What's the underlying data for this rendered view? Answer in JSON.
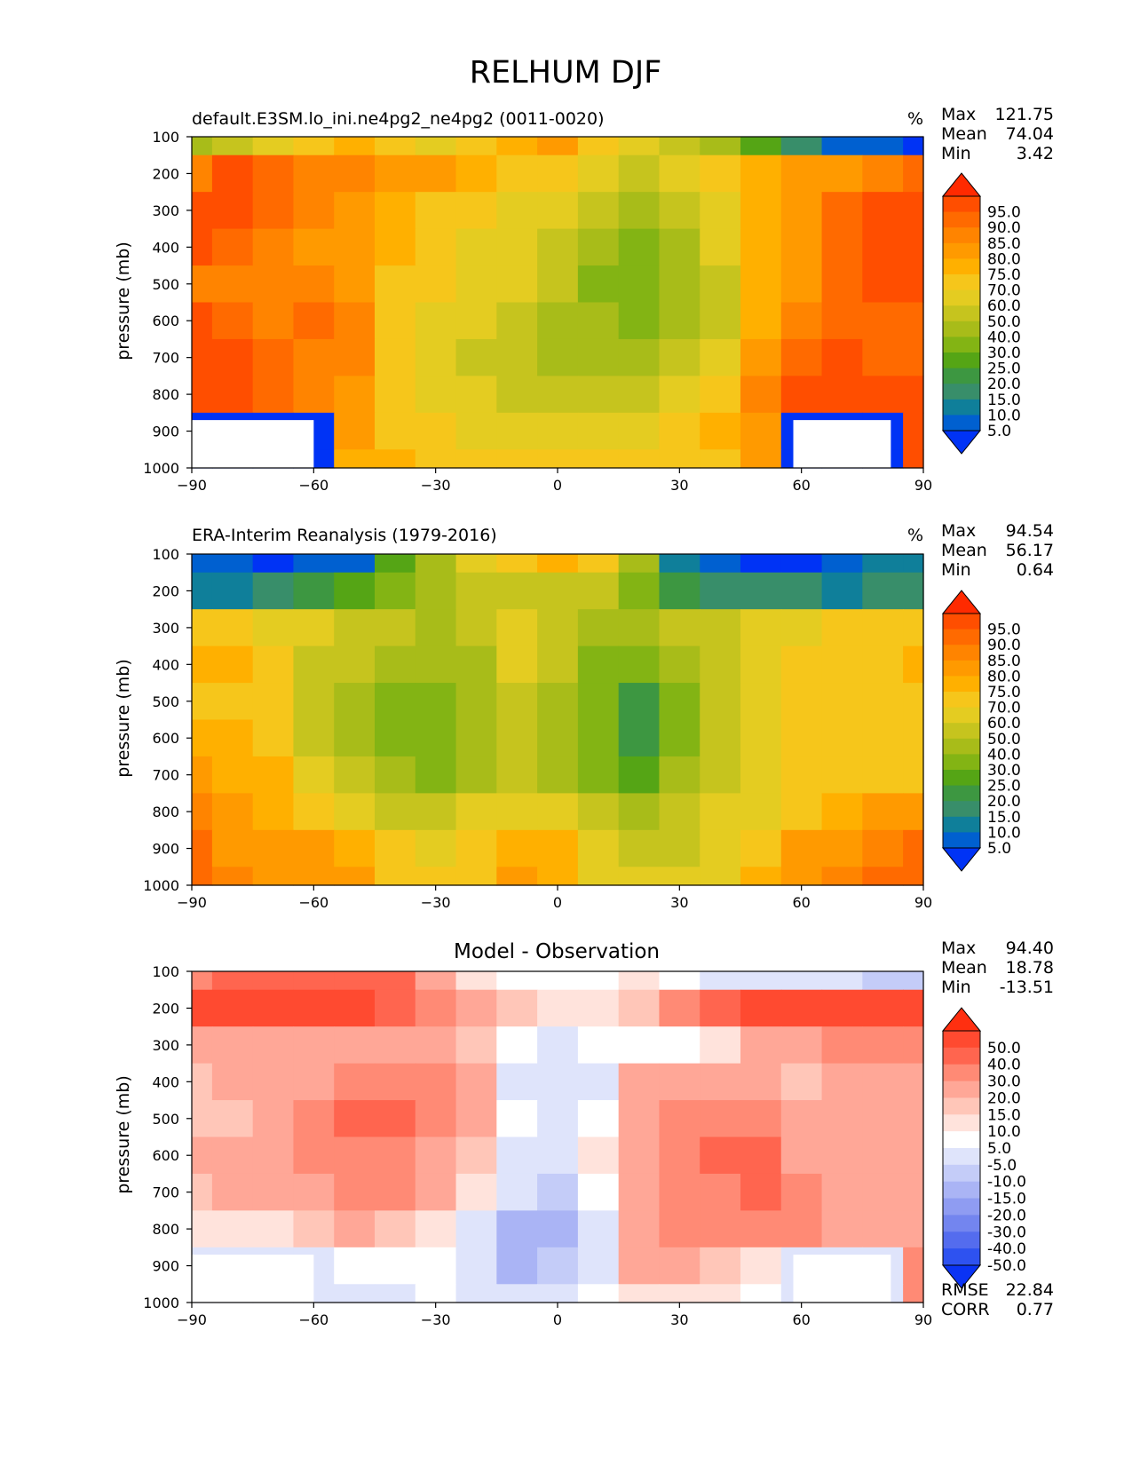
{
  "figure": {
    "title": "RELHUM DJF"
  },
  "panels": [
    {
      "title": "default.E3SM.lo_ini.ne4pg2_ne4pg2 (0011-0020)",
      "units": "%",
      "stats": [
        {
          "label": "Max",
          "value": "121.75"
        },
        {
          "label": "Mean",
          "value": "74.04"
        },
        {
          "label": "Min",
          "value": "3.42"
        }
      ],
      "ylabel": "pressure (mb)",
      "colorbar": {
        "levels": [
          "95.0",
          "90.0",
          "85.0",
          "80.0",
          "75.0",
          "70.0",
          "60.0",
          "50.0",
          "40.0",
          "30.0",
          "25.0",
          "20.0",
          "15.0",
          "10.0",
          "5.0"
        ],
        "colors": [
          "#ff2a00",
          "#ff4e00",
          "#ff6a00",
          "#ff8400",
          "#ff9a00",
          "#ffb000",
          "#f6c61b",
          "#e4cc21",
          "#c6c41e",
          "#a8bc19",
          "#83b414",
          "#55a515",
          "#3d9741",
          "#388e6a",
          "#0f7f9a",
          "#0060d0",
          "#0033f5"
        ]
      },
      "bottom_stats": []
    },
    {
      "title": "ERA-Interim Reanalysis (1979-2016)",
      "units": "%",
      "stats": [
        {
          "label": "Max",
          "value": "94.54"
        },
        {
          "label": "Mean",
          "value": "56.17"
        },
        {
          "label": "Min",
          "value": "0.64"
        }
      ],
      "ylabel": "pressure (mb)",
      "colorbar": {
        "levels": [
          "95.0",
          "90.0",
          "85.0",
          "80.0",
          "75.0",
          "70.0",
          "60.0",
          "50.0",
          "40.0",
          "30.0",
          "25.0",
          "20.0",
          "15.0",
          "10.0",
          "5.0"
        ],
        "colors": [
          "#ff2a00",
          "#ff4e00",
          "#ff6a00",
          "#ff8400",
          "#ff9a00",
          "#ffb000",
          "#f6c61b",
          "#e4cc21",
          "#c6c41e",
          "#a8bc19",
          "#83b414",
          "#55a515",
          "#3d9741",
          "#388e6a",
          "#0f7f9a",
          "#0060d0",
          "#0033f5"
        ]
      },
      "bottom_stats": []
    },
    {
      "title": "Model - Observation",
      "units": "",
      "stats": [
        {
          "label": "Max",
          "value": "94.40"
        },
        {
          "label": "Mean",
          "value": "18.78"
        },
        {
          "label": "Min",
          "value": "-13.51"
        }
      ],
      "ylabel": "pressure (mb)",
      "colorbar": {
        "levels": [
          "50.0",
          "40.0",
          "30.0",
          "20.0",
          "15.0",
          "10.0",
          "5.0",
          "-5.0",
          "-10.0",
          "-15.0",
          "-20.0",
          "-30.0",
          "-40.0",
          "-50.0"
        ],
        "colors": [
          "#ff2f10",
          "#ff4a30",
          "#ff654f",
          "#ff8a75",
          "#ffa797",
          "#ffc6b8",
          "#ffe3dc",
          "#ffffff",
          "#dfe4fb",
          "#c4ccf8",
          "#aab4f5",
          "#8f9cf2",
          "#7385ef",
          "#546cee",
          "#2e52f0",
          "#0a33f4"
        ]
      },
      "bottom_stats": [
        {
          "label": "RMSE",
          "value": "22.84"
        },
        {
          "label": "CORR",
          "value": "0.77"
        }
      ]
    }
  ],
  "chart_data": [
    {
      "type": "heatmap",
      "title": "default.E3SM.lo_ini.ne4pg2_ne4pg2 (0011-0020)",
      "ylabel": "pressure (mb)",
      "x": [
        -90,
        -80,
        -70,
        -60,
        -50,
        -40,
        -30,
        -20,
        -10,
        0,
        10,
        20,
        30,
        40,
        50,
        60,
        70,
        80,
        90
      ],
      "y": [
        100,
        200,
        300,
        400,
        500,
        600,
        700,
        800,
        900,
        1000
      ],
      "xticks": [
        "−90",
        "−60",
        "−30",
        "0",
        "30",
        "60",
        "90"
      ],
      "xtick_values": [
        -90,
        -60,
        -30,
        0,
        30,
        60,
        90
      ],
      "yticks": [
        "100",
        "200",
        "300",
        "400",
        "500",
        "600",
        "700",
        "800",
        "900",
        "1000"
      ],
      "ylim": [
        1000,
        100
      ],
      "xlim": [
        -90,
        90
      ],
      "missing_regions": [
        {
          "lat_min": -90,
          "lat_max": -60,
          "p_min": 870,
          "p_max": 1000
        },
        {
          "lat_min": 58,
          "lat_max": 82,
          "p_min": 870,
          "p_max": 1000
        }
      ],
      "values": [
        [
          45,
          55,
          65,
          70,
          75,
          72,
          68,
          70,
          75,
          80,
          70,
          65,
          55,
          40,
          25,
          15,
          8,
          5,
          4
        ],
        [
          88,
          96,
          92,
          86,
          85,
          82,
          80,
          78,
          74,
          70,
          60,
          55,
          62,
          70,
          76,
          80,
          84,
          88,
          90
        ],
        [
          96,
          96,
          90,
          86,
          82,
          78,
          74,
          70,
          66,
          60,
          52,
          48,
          55,
          65,
          78,
          84,
          90,
          96,
          96
        ],
        [
          96,
          94,
          88,
          84,
          82,
          76,
          72,
          68,
          62,
          55,
          42,
          38,
          48,
          60,
          76,
          84,
          90,
          96,
          96
        ],
        [
          88,
          88,
          86,
          88,
          84,
          74,
          70,
          66,
          60,
          50,
          38,
          35,
          45,
          58,
          76,
          84,
          90,
          96,
          96
        ],
        [
          96,
          94,
          88,
          92,
          86,
          72,
          66,
          62,
          55,
          48,
          40,
          38,
          46,
          56,
          78,
          88,
          90,
          92,
          92
        ],
        [
          96,
          96,
          94,
          88,
          86,
          74,
          62,
          58,
          55,
          48,
          42,
          42,
          50,
          60,
          80,
          92,
          96,
          92,
          92
        ],
        [
          96,
          96,
          92,
          86,
          82,
          74,
          65,
          60,
          58,
          56,
          55,
          56,
          62,
          72,
          86,
          96,
          96,
          95,
          95
        ],
        [
          0,
          0,
          0,
          0,
          80,
          74,
          70,
          66,
          64,
          64,
          65,
          68,
          72,
          76,
          82,
          0,
          0,
          0,
          96
        ],
        [
          0,
          0,
          0,
          0,
          78,
          76,
          74,
          72,
          72,
          74,
          74,
          74,
          72,
          74,
          80,
          0,
          0,
          0,
          96
        ]
      ]
    },
    {
      "type": "heatmap",
      "title": "ERA-Interim Reanalysis (1979-2016)",
      "ylabel": "pressure (mb)",
      "x": [
        -90,
        -80,
        -70,
        -60,
        -50,
        -40,
        -30,
        -20,
        -10,
        0,
        10,
        20,
        30,
        40,
        50,
        60,
        70,
        80,
        90
      ],
      "y": [
        100,
        200,
        300,
        400,
        500,
        600,
        700,
        800,
        900,
        1000
      ],
      "xticks": [
        "−90",
        "−60",
        "−30",
        "0",
        "30",
        "60",
        "90"
      ],
      "xtick_values": [
        -90,
        -60,
        -30,
        0,
        30,
        60,
        90
      ],
      "yticks": [
        "100",
        "200",
        "300",
        "400",
        "500",
        "600",
        "700",
        "800",
        "900",
        "1000"
      ],
      "ylim": [
        1000,
        100
      ],
      "xlim": [
        -90,
        90
      ],
      "values": [
        [
          5,
          5,
          4,
          5,
          8,
          25,
          45,
          62,
          72,
          76,
          70,
          40,
          10,
          6,
          4,
          4,
          6,
          10,
          12
        ],
        [
          10,
          12,
          15,
          20,
          28,
          35,
          45,
          50,
          58,
          58,
          50,
          35,
          22,
          18,
          15,
          15,
          14,
          15,
          16
        ],
        [
          72,
          70,
          65,
          60,
          55,
          50,
          48,
          52,
          62,
          58,
          45,
          40,
          50,
          58,
          66,
          68,
          70,
          72,
          74
        ],
        [
          78,
          76,
          72,
          58,
          50,
          40,
          40,
          48,
          60,
          52,
          38,
          34,
          44,
          55,
          66,
          70,
          72,
          74,
          78
        ],
        [
          72,
          70,
          70,
          56,
          45,
          36,
          34,
          44,
          56,
          46,
          34,
          24,
          38,
          52,
          66,
          70,
          72,
          72,
          74
        ],
        [
          75,
          76,
          72,
          58,
          45,
          38,
          34,
          42,
          52,
          44,
          32,
          22,
          35,
          50,
          64,
          70,
          72,
          72,
          74
        ],
        [
          80,
          78,
          76,
          64,
          52,
          42,
          38,
          46,
          58,
          48,
          36,
          28,
          40,
          54,
          66,
          70,
          72,
          72,
          74
        ],
        [
          85,
          80,
          78,
          72,
          64,
          58,
          56,
          60,
          65,
          62,
          50,
          44,
          50,
          60,
          68,
          74,
          76,
          80,
          82
        ],
        [
          90,
          84,
          82,
          80,
          76,
          70,
          66,
          72,
          78,
          76,
          62,
          56,
          58,
          62,
          72,
          80,
          84,
          86,
          90
        ],
        [
          92,
          86,
          84,
          82,
          80,
          74,
          70,
          72,
          80,
          78,
          66,
          60,
          60,
          66,
          76,
          84,
          88,
          90,
          92
        ]
      ]
    },
    {
      "type": "heatmap",
      "title": "Model - Observation",
      "ylabel": "pressure (mb)",
      "x": [
        -90,
        -80,
        -70,
        -60,
        -50,
        -40,
        -30,
        -20,
        -10,
        0,
        10,
        20,
        30,
        40,
        50,
        60,
        70,
        80,
        90
      ],
      "y": [
        100,
        200,
        300,
        400,
        500,
        600,
        700,
        800,
        900,
        1000
      ],
      "xticks": [
        "−90",
        "−60",
        "−30",
        "0",
        "30",
        "60",
        "90"
      ],
      "xtick_values": [
        -90,
        -60,
        -30,
        0,
        30,
        60,
        90
      ],
      "yticks": [
        "100",
        "200",
        "300",
        "400",
        "500",
        "600",
        "700",
        "800",
        "900",
        "1000"
      ],
      "ylim": [
        1000,
        100
      ],
      "xlim": [
        -90,
        90
      ],
      "missing_regions": [
        {
          "lat_min": -90,
          "lat_max": -60,
          "p_min": 870,
          "p_max": 1000
        },
        {
          "lat_min": 58,
          "lat_max": 82,
          "p_min": 870,
          "p_max": 1000
        }
      ],
      "values": [
        [
          35,
          40,
          42,
          45,
          45,
          40,
          25,
          12,
          8,
          6,
          5,
          12,
          8,
          4,
          3,
          2,
          1,
          -6,
          -8
        ],
        [
          70,
          68,
          62,
          58,
          52,
          42,
          35,
          28,
          16,
          12,
          10,
          18,
          38,
          48,
          58,
          62,
          68,
          72,
          74
        ],
        [
          22,
          24,
          22,
          24,
          28,
          28,
          24,
          18,
          6,
          2,
          6,
          8,
          6,
          12,
          24,
          28,
          34,
          32,
          30
        ],
        [
          18,
          20,
          20,
          26,
          32,
          36,
          32,
          22,
          4,
          2,
          4,
          22,
          28,
          26,
          20,
          16,
          22,
          26,
          26
        ],
        [
          16,
          18,
          20,
          32,
          40,
          42,
          36,
          22,
          6,
          0,
          6,
          24,
          32,
          34,
          32,
          26,
          28,
          26,
          24
        ],
        [
          20,
          20,
          20,
          34,
          38,
          34,
          28,
          18,
          2,
          -5,
          10,
          26,
          36,
          40,
          40,
          28,
          24,
          26,
          26
        ],
        [
          18,
          20,
          20,
          28,
          32,
          30,
          24,
          12,
          -4,
          -8,
          6,
          26,
          36,
          38,
          40,
          32,
          26,
          26,
          26
        ],
        [
          12,
          14,
          14,
          16,
          20,
          18,
          12,
          2,
          -12,
          -14,
          4,
          24,
          34,
          36,
          38,
          30,
          22,
          20,
          22
        ],
        [
          0,
          0,
          0,
          0,
          6,
          6,
          6,
          -4,
          -12,
          -10,
          4,
          20,
          20,
          16,
          10,
          0,
          0,
          0,
          30
        ],
        [
          0,
          0,
          0,
          0,
          4,
          4,
          6,
          4,
          -2,
          0,
          6,
          12,
          12,
          10,
          6,
          0,
          0,
          0,
          30
        ]
      ]
    }
  ]
}
